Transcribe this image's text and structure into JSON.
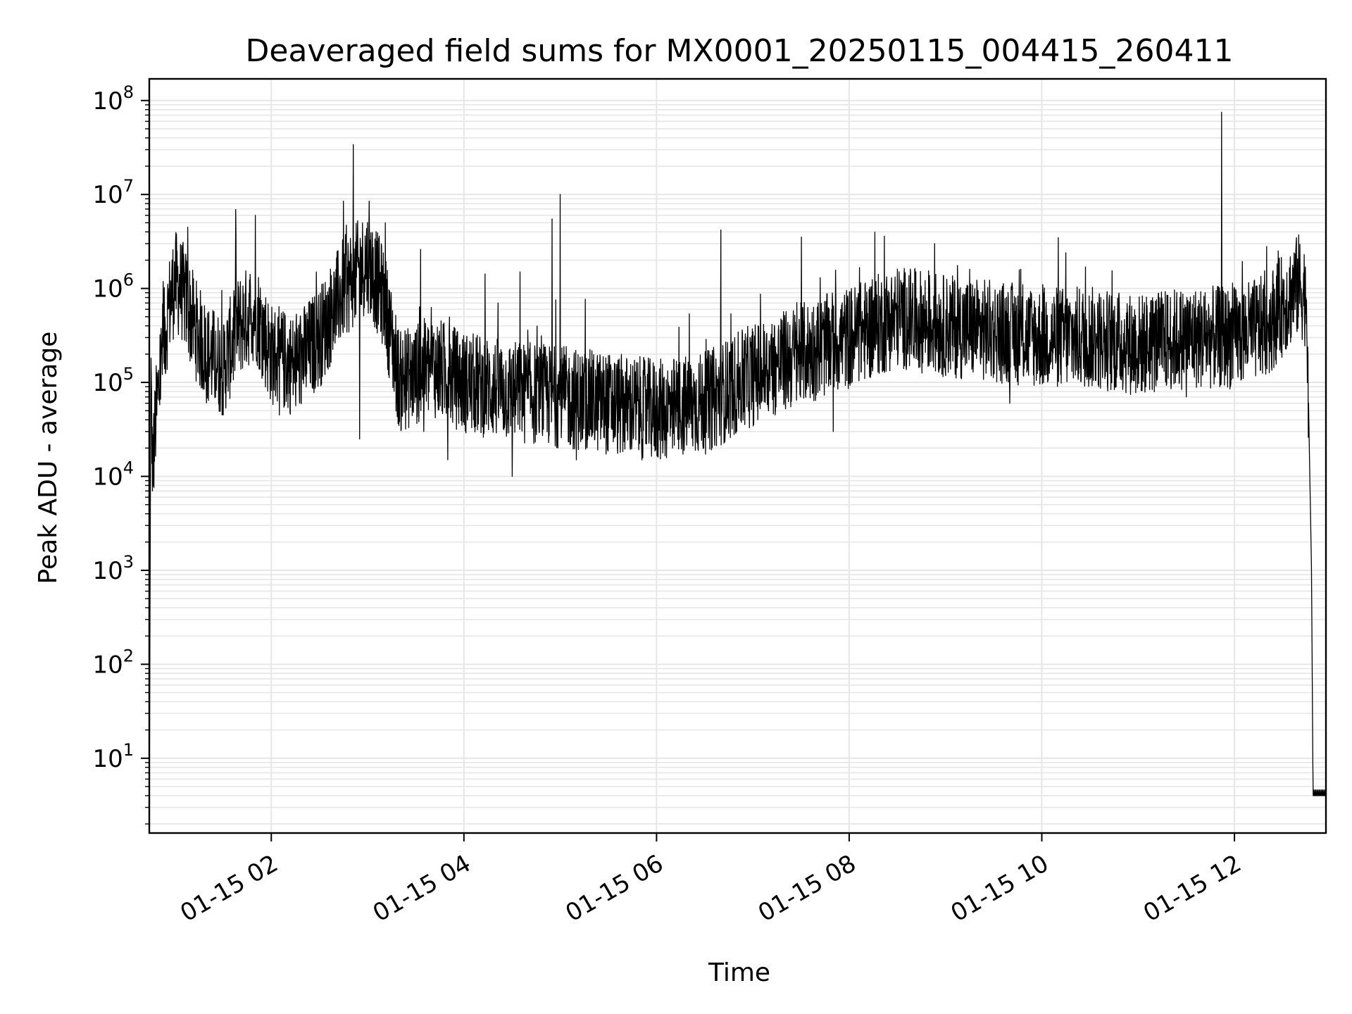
{
  "chart_data": {
    "type": "line",
    "title": "Deaveraged field sums for MX0001_20250115_004415_260411",
    "xlabel": "Time",
    "ylabel": "Peak ADU - average",
    "yscale": "log",
    "ylim": [
      1.6,
      170000000.0
    ],
    "xlim": [
      "01-15 00:44",
      "01-15 12:57"
    ],
    "grid": true,
    "line_color": "#000000",
    "grid_color": "#e6e6e6",
    "x_ticks": [
      {
        "time": "01-15 02:00",
        "label": "01-15 02"
      },
      {
        "time": "01-15 04:00",
        "label": "01-15 04"
      },
      {
        "time": "01-15 06:00",
        "label": "01-15 06"
      },
      {
        "time": "01-15 08:00",
        "label": "01-15 08"
      },
      {
        "time": "01-15 10:00",
        "label": "01-15 10"
      },
      {
        "time": "01-15 12:00",
        "label": "01-15 12"
      }
    ],
    "y_ticks": [
      {
        "value": 10,
        "base": "10",
        "exp": "1"
      },
      {
        "value": 100,
        "base": "10",
        "exp": "2"
      },
      {
        "value": 1000,
        "base": "10",
        "exp": "3"
      },
      {
        "value": 10000,
        "base": "10",
        "exp": "4"
      },
      {
        "value": 100000,
        "base": "10",
        "exp": "5"
      },
      {
        "value": 1000000,
        "base": "10",
        "exp": "6"
      },
      {
        "value": 10000000,
        "base": "10",
        "exp": "7"
      },
      {
        "value": 100000000,
        "base": "10",
        "exp": "8"
      }
    ],
    "series": [
      {
        "points": [
          [
            "01-15 00:44",
            2
          ],
          [
            "01-15 00:45",
            150000.0
          ],
          [
            "01-15 00:46",
            12000.0
          ],
          [
            "01-15 00:48",
            40000.0
          ],
          [
            "01-15 00:52",
            200000.0
          ],
          [
            "01-15 00:56",
            600000.0
          ],
          [
            "01-15 01:00",
            1200000.0
          ],
          [
            "01-15 01:05",
            900000.0
          ],
          [
            "01-15 01:10",
            500000.0
          ],
          [
            "01-15 01:15",
            300000.0
          ],
          [
            "01-15 01:20",
            200000.0
          ],
          [
            "01-15 01:30",
            150000.0
          ],
          [
            "01-15 01:40",
            400000.0
          ],
          [
            "01-15 01:50",
            600000.0
          ],
          [
            "01-15 02:00",
            200000.0
          ],
          [
            "01-15 02:15",
            150000.0
          ],
          [
            "01-15 02:30",
            300000.0
          ],
          [
            "01-15 02:45",
            1000000.0
          ],
          [
            "01-15 03:00",
            2000000.0
          ],
          [
            "01-15 03:10",
            800000.0
          ],
          [
            "01-15 03:20",
            100000.0
          ],
          [
            "01-15 03:40",
            150000.0
          ],
          [
            "01-15 04:00",
            100000.0
          ],
          [
            "01-15 04:30",
            80000.0
          ],
          [
            "01-15 05:00",
            70000.0
          ],
          [
            "01-15 05:30",
            60000.0
          ],
          [
            "01-15 06:00",
            50000.0
          ],
          [
            "01-15 06:30",
            60000.0
          ],
          [
            "01-15 07:00",
            120000.0
          ],
          [
            "01-15 07:30",
            200000.0
          ],
          [
            "01-15 08:00",
            300000.0
          ],
          [
            "01-15 08:30",
            500000.0
          ],
          [
            "01-15 09:00",
            400000.0
          ],
          [
            "01-15 09:30",
            350000.0
          ],
          [
            "01-15 10:00",
            300000.0
          ],
          [
            "01-15 10:30",
            300000.0
          ],
          [
            "01-15 11:00",
            250000.0
          ],
          [
            "01-15 11:30",
            300000.0
          ],
          [
            "01-15 12:00",
            300000.0
          ],
          [
            "01-15 12:20",
            400000.0
          ],
          [
            "01-15 12:40",
            1100000.0
          ],
          [
            "01-15 12:45",
            800000.0
          ],
          [
            "01-15 12:48",
            1000.0
          ],
          [
            "01-15 12:49",
            4
          ],
          [
            "01-15 12:57",
            4
          ]
        ]
      }
    ],
    "peaks": [
      [
        "01-15 01:08",
        4500000.0
      ],
      [
        "01-15 01:38",
        3800000.0
      ],
      [
        "01-15 01:50",
        6000000.0
      ],
      [
        "01-15 02:28",
        1500000.0
      ],
      [
        "01-15 02:45",
        8500000.0
      ],
      [
        "01-15 02:51",
        34000000.0
      ],
      [
        "01-15 03:01",
        8500000.0
      ],
      [
        "01-15 03:11",
        5000000.0
      ],
      [
        "01-15 03:33",
        2600000.0
      ],
      [
        "01-15 04:35",
        1500000.0
      ],
      [
        "01-15 04:55",
        5500000.0
      ],
      [
        "01-15 05:00",
        10000000.0
      ],
      [
        "01-15 06:40",
        4200000.0
      ],
      [
        "01-15 07:42",
        1300000.0
      ],
      [
        "01-15 08:22",
        3600000.0
      ],
      [
        "01-15 09:15",
        1600000.0
      ],
      [
        "01-15 10:15",
        2400000.0
      ],
      [
        "01-15 11:52",
        75000000.0
      ],
      [
        "01-15 12:20",
        2800000.0
      ]
    ],
    "troughs": [
      [
        "01-15 00:46",
        7000.0
      ],
      [
        "01-15 01:30",
        45000.0
      ],
      [
        "01-15 02:05",
        45000.0
      ],
      [
        "01-15 02:55",
        25000.0
      ],
      [
        "01-15 03:35",
        30000.0
      ],
      [
        "01-15 03:50",
        15000.0
      ],
      [
        "01-15 04:30",
        10000.0
      ],
      [
        "01-15 05:10",
        15000.0
      ],
      [
        "01-15 06:10",
        20000.0
      ],
      [
        "01-15 07:50",
        30000.0
      ],
      [
        "01-15 09:40",
        60000.0
      ],
      [
        "01-15 11:30",
        70000.0
      ]
    ]
  }
}
